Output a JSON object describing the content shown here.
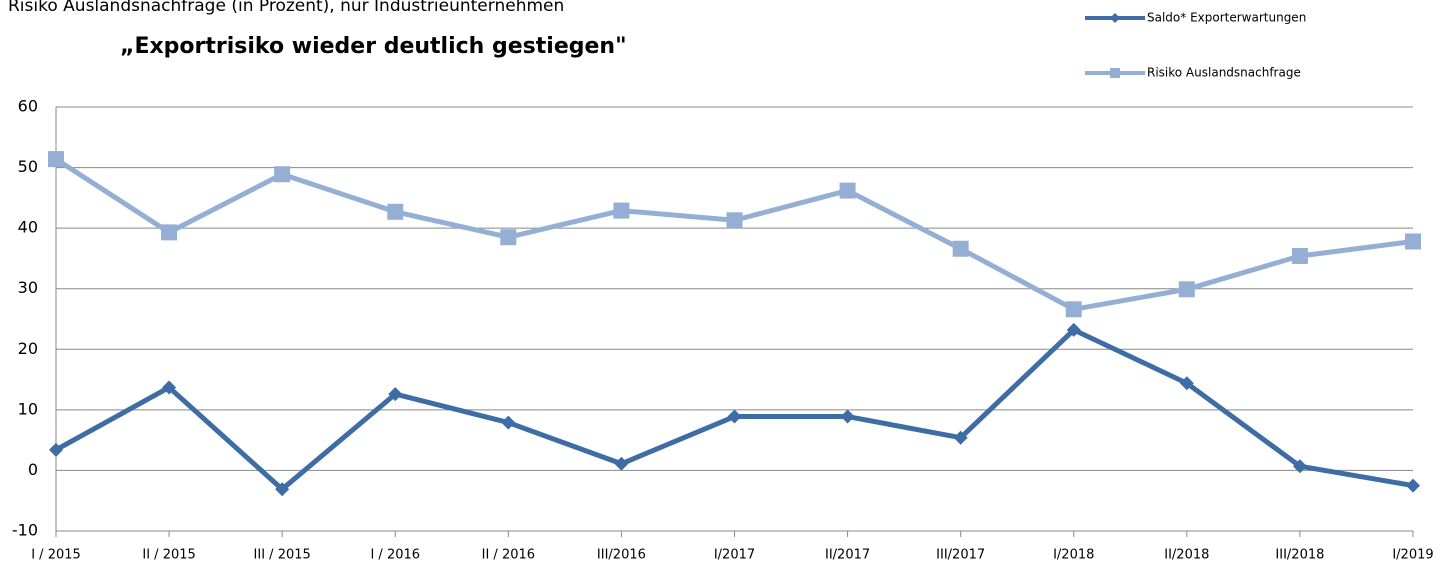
{
  "chart_data": {
    "type": "line",
    "subtitle": "Risiko Auslandsnachfrage (in Prozent), nur Industrieunternehmen",
    "title": "„Exportrisiko wieder deutlich gestiegen\"",
    "categories": [
      "I / 2015",
      "II / 2015",
      "III / 2015",
      "I / 2016",
      "II / 2016",
      "III/2016",
      "I/2017",
      "II/2017",
      "III/2017",
      "I/2018",
      "II/2018",
      "III/2018",
      "I/2019"
    ],
    "series": [
      {
        "name": "Saldo* Exporterwartungen",
        "color": "#3e6ca5",
        "marker": "diamond",
        "values": [
          3.4,
          13.7,
          -3.1,
          12.6,
          7.9,
          1.1,
          8.9,
          8.9,
          5.4,
          23.2,
          14.4,
          0.7,
          -2.5
        ]
      },
      {
        "name": "Risiko Auslandsnachfrage",
        "color": "#95aed4",
        "marker": "square",
        "values": [
          51.4,
          39.3,
          48.9,
          42.7,
          38.5,
          42.9,
          41.3,
          46.2,
          36.6,
          26.6,
          29.9,
          35.4,
          37.8
        ]
      }
    ],
    "ylim": [
      -10,
      60
    ],
    "yticks": [
      -10,
      0,
      10,
      20,
      30,
      40,
      50,
      60
    ],
    "grid": true,
    "legend": "top-right"
  }
}
